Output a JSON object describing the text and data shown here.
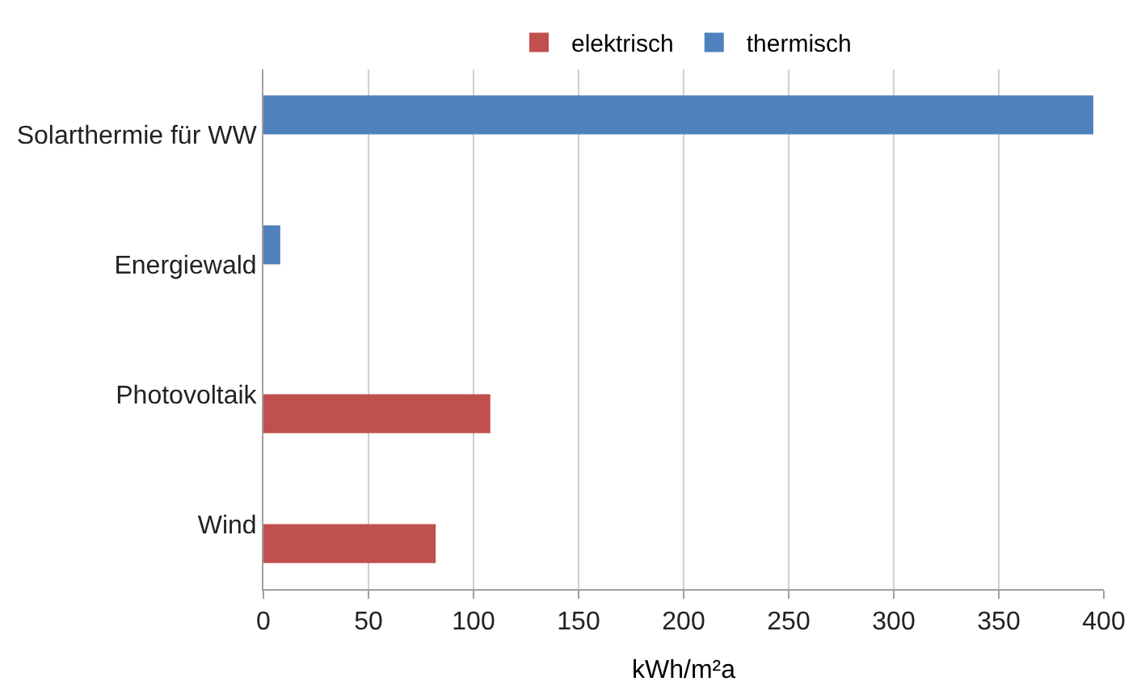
{
  "chart_data": {
    "type": "bar",
    "orientation": "horizontal",
    "xlabel": "kWh/m²a",
    "categories": [
      "Solarthermie für WW",
      "Energiewald",
      "Photovoltaik",
      "Wind"
    ],
    "series": [
      {
        "name": "elektrisch",
        "color": "#c0504d",
        "values": [
          null,
          null,
          108,
          82
        ]
      },
      {
        "name": "thermisch",
        "color": "#4f81bd",
        "values": [
          395,
          8,
          null,
          null
        ]
      }
    ],
    "xlim": [
      0,
      400
    ],
    "xticks": [
      0,
      50,
      100,
      150,
      200,
      250,
      300,
      350,
      400
    ],
    "grid": "x",
    "legend": "top"
  }
}
